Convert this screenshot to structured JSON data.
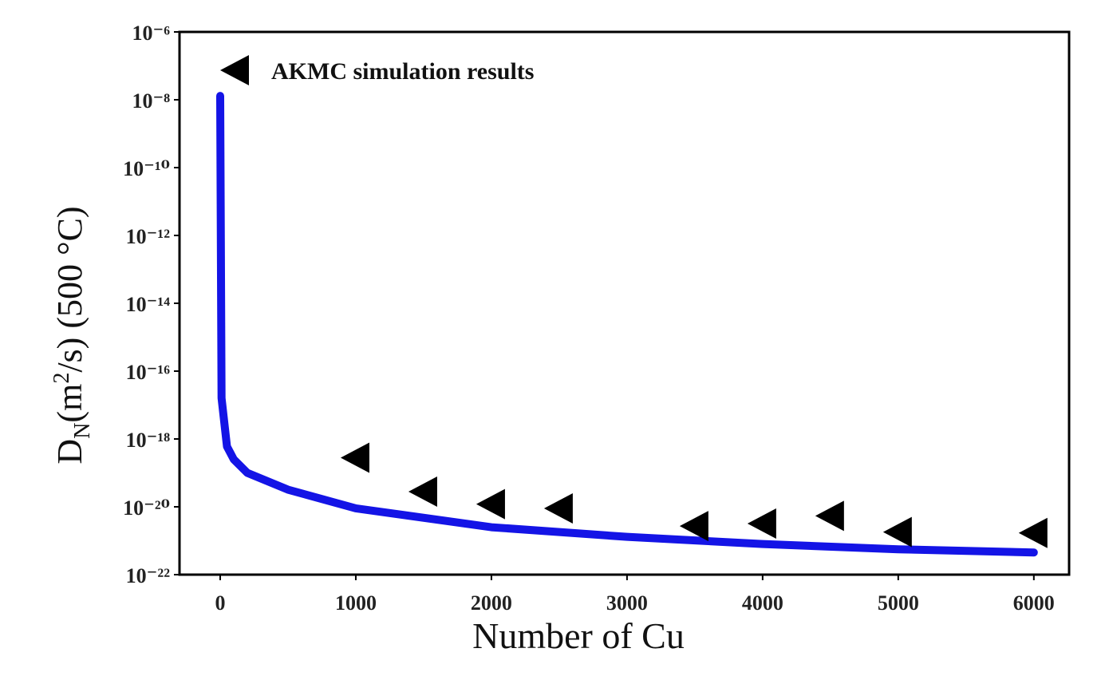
{
  "chart_data": {
    "type": "line",
    "xlabel": "Number of Cu",
    "ylabel_parts": [
      "D",
      "N",
      "(m",
      "2",
      "/s) (500 °C)"
    ],
    "xlim": [
      -300,
      6260
    ],
    "ylim": [
      1e-22,
      1e-06
    ],
    "yscale": "log",
    "xticks": [
      0,
      1000,
      2000,
      3000,
      4000,
      5000,
      6000
    ],
    "yticks": [
      {
        "value": 1e-06,
        "label": "10⁻⁶"
      },
      {
        "value": 1e-08,
        "label": "10⁻⁸"
      },
      {
        "value": 1e-10,
        "label": "10⁻¹⁰"
      },
      {
        "value": 1e-12,
        "label": "10⁻¹²"
      },
      {
        "value": 1e-14,
        "label": "10⁻¹⁴"
      },
      {
        "value": 1e-16,
        "label": "10⁻¹⁶"
      },
      {
        "value": 1e-18,
        "label": "10⁻¹⁸"
      },
      {
        "value": 1e-20,
        "label": "10⁻²⁰"
      },
      {
        "value": 1e-22,
        "label": "10⁻²²"
      }
    ],
    "legend": "upper left",
    "series": [
      {
        "type": "line",
        "color": "#1414e6",
        "x": [
          0,
          10,
          50,
          100,
          200,
          500,
          1000,
          2000,
          3000,
          4000,
          5000,
          6000
        ],
        "values": [
          1.3e-08,
          1.6e-17,
          6e-19,
          2.5e-19,
          1e-19,
          3.2e-20,
          9e-21,
          2.5e-21,
          1.3e-21,
          8e-22,
          5.6e-22,
          4.5e-22
        ]
      },
      {
        "type": "scatter",
        "name": "AKMC simulation results",
        "color": "#000000",
        "marker": "triangle-left",
        "x": [
          1000,
          1500,
          2000,
          2500,
          3500,
          4000,
          4500,
          5000,
          6000
        ],
        "values": [
          2.8e-19,
          2.8e-20,
          1.2e-20,
          9e-21,
          2.7e-21,
          3.2e-21,
          5.4e-21,
          1.8e-21,
          1.7e-21
        ]
      }
    ]
  }
}
